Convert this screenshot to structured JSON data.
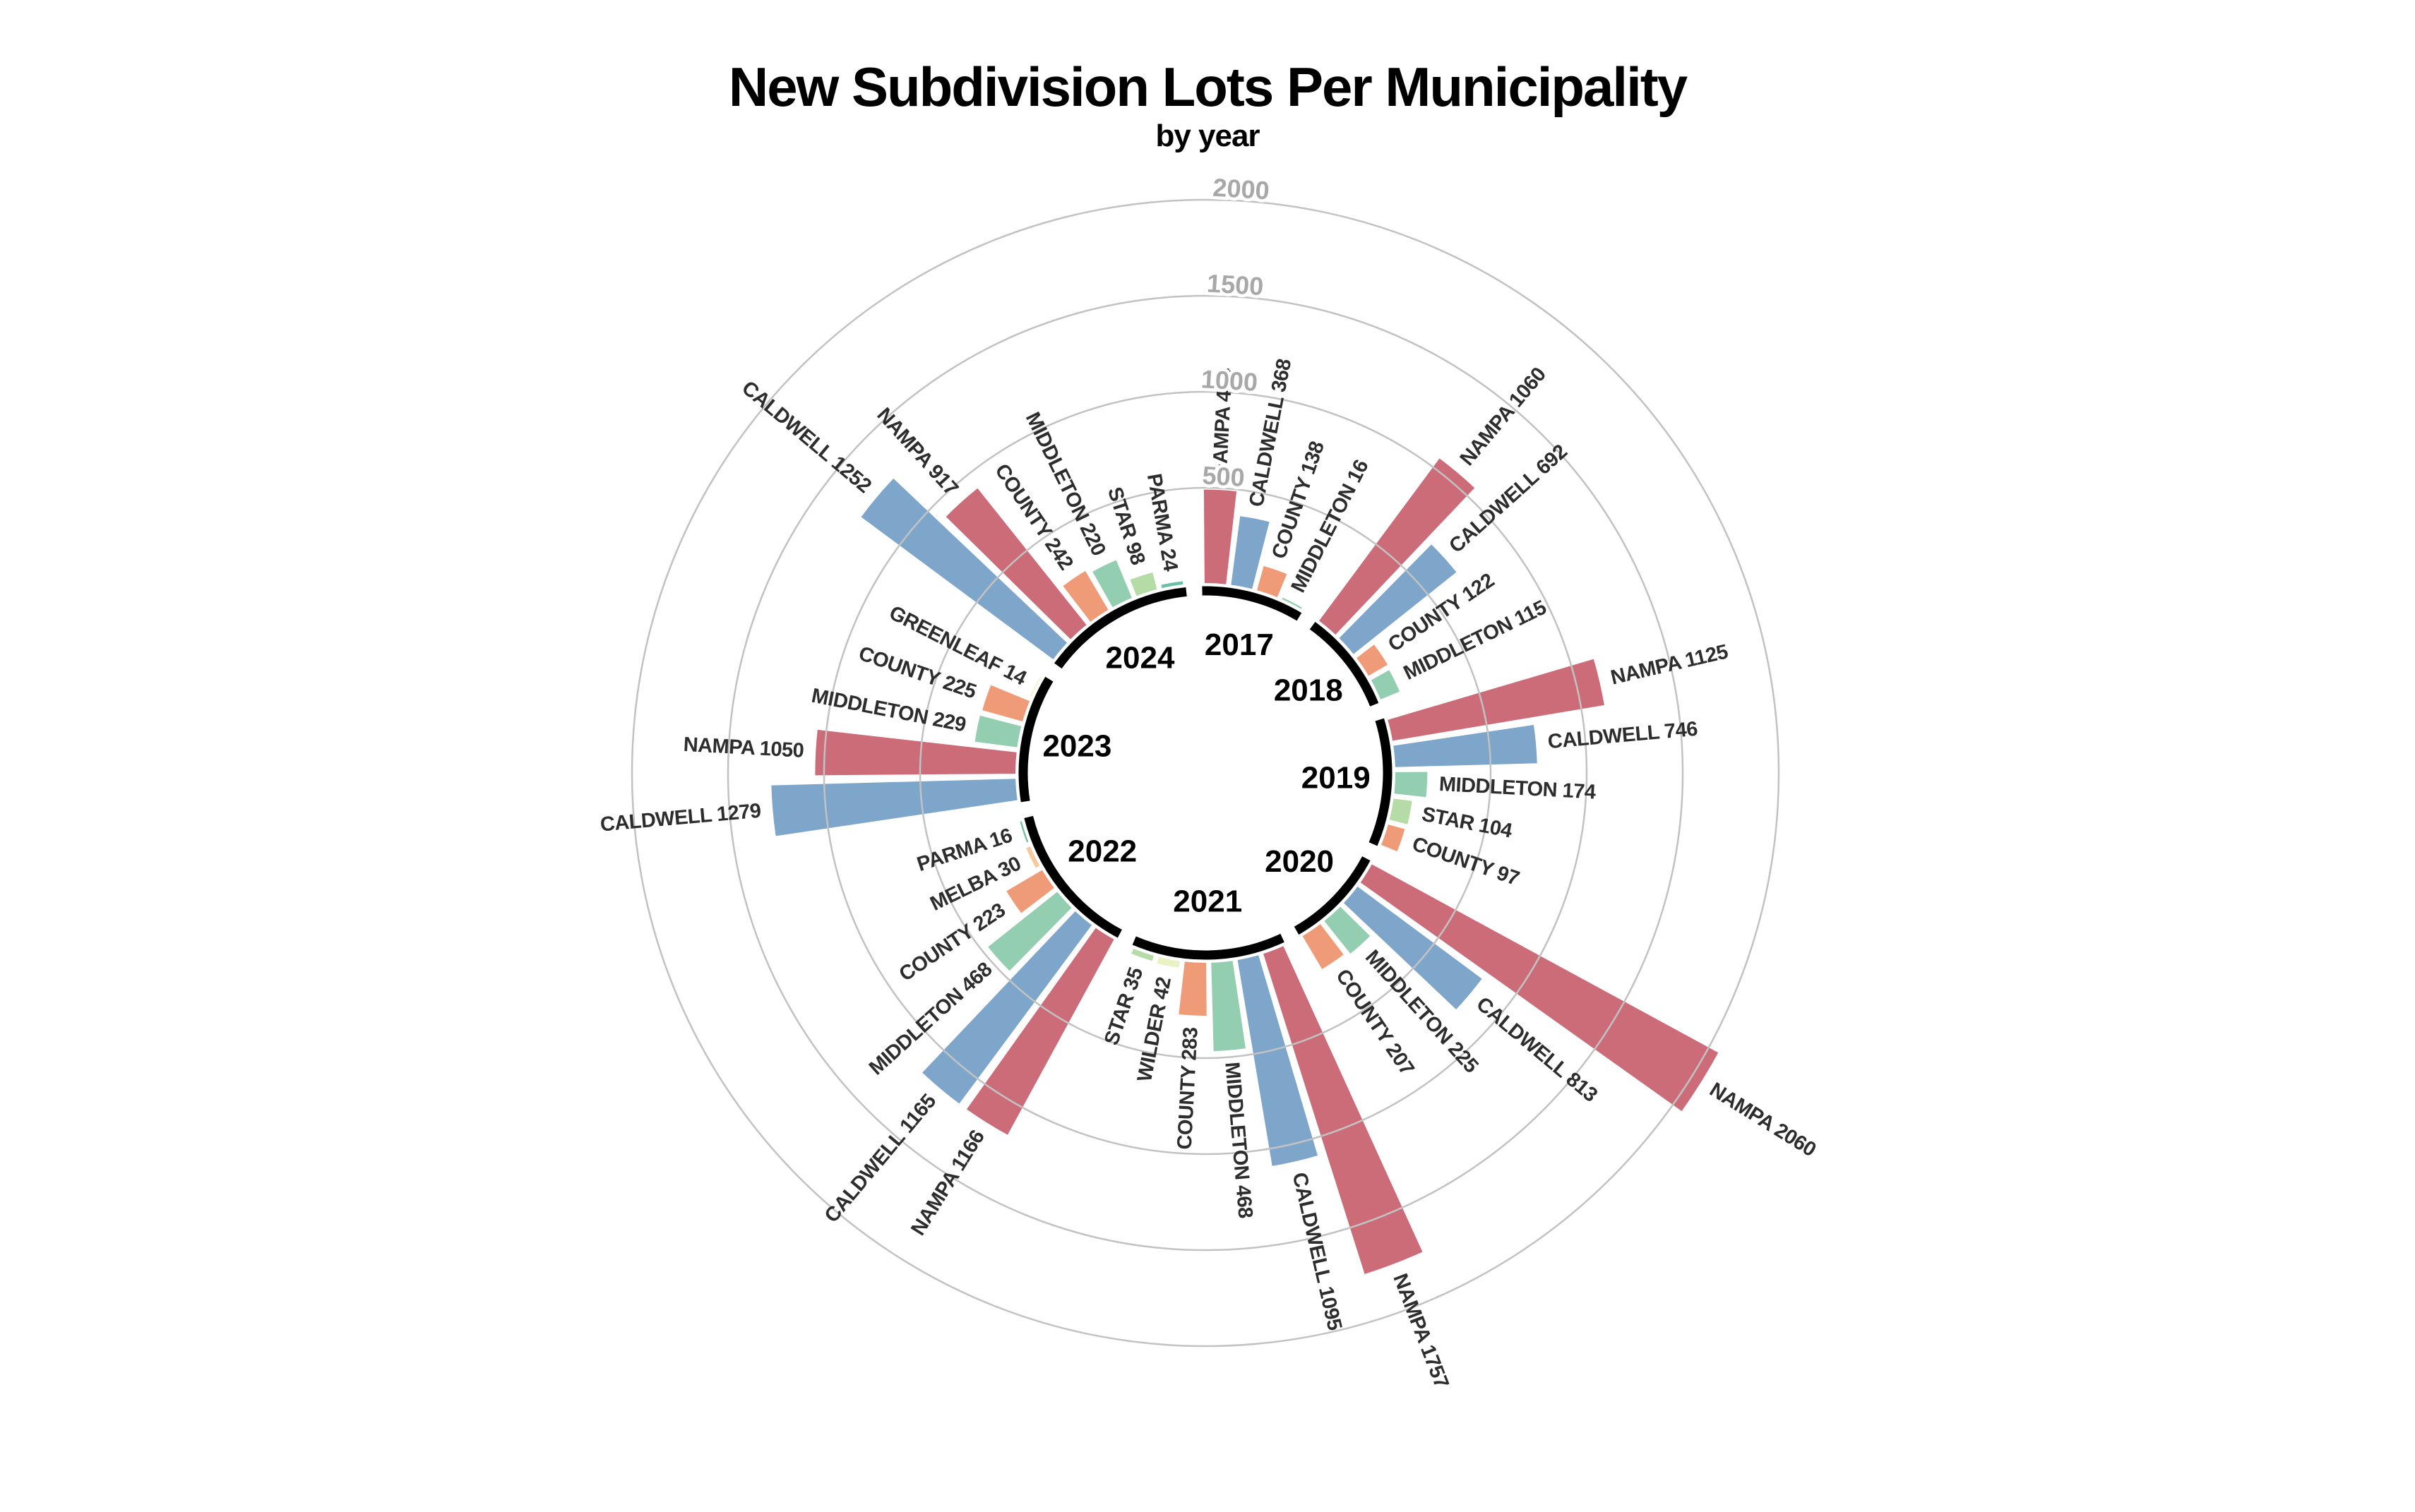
{
  "title": "New Subdivision Lots Per Municipality",
  "subtitle": "by year",
  "chart_data": {
    "type": "bar",
    "variant": "radial-coxcomb",
    "grid": true,
    "radial_ticks": [
      500,
      1000,
      1500,
      2000
    ],
    "rlim": [
      0,
      2000
    ],
    "inner_ring_color": "#000000",
    "gridline_color": "#c2c2c2",
    "tick_label_color": "#a8a8a8",
    "bar_label_color": "#2d2d2d",
    "year_label_color": "#000000",
    "palette": {
      "NAMPA": "#cb6c78",
      "CALDWELL": "#7ea6cb",
      "COUNTY": "#f09b77",
      "MIDDLETON": "#94ceb1",
      "STAR": "#b5dba6",
      "WILDER": "#e9f2c3",
      "MELBA": "#f6c89c",
      "PARMA": "#6ac0a7",
      "GREENLEAF": "#f1f5c9"
    },
    "years": [
      {
        "year": "2017",
        "entries": [
          {
            "name": "NAMPA",
            "value": 494
          },
          {
            "name": "CALDWELL",
            "value": 368
          },
          {
            "name": "COUNTY",
            "value": 138
          },
          {
            "name": "MIDDLETON",
            "value": 16
          }
        ]
      },
      {
        "year": "2018",
        "entries": [
          {
            "name": "NAMPA",
            "value": 1060
          },
          {
            "name": "CALDWELL",
            "value": 692
          },
          {
            "name": "COUNTY",
            "value": 122
          },
          {
            "name": "MIDDLETON",
            "value": 115
          }
        ]
      },
      {
        "year": "2019",
        "entries": [
          {
            "name": "NAMPA",
            "value": 1125
          },
          {
            "name": "CALDWELL",
            "value": 746
          },
          {
            "name": "MIDDLETON",
            "value": 174
          },
          {
            "name": "STAR",
            "value": 104
          },
          {
            "name": "COUNTY",
            "value": 97
          }
        ]
      },
      {
        "year": "2020",
        "entries": [
          {
            "name": "NAMPA",
            "value": 2060
          },
          {
            "name": "CALDWELL",
            "value": 813
          },
          {
            "name": "MIDDLETON",
            "value": 225
          },
          {
            "name": "COUNTY",
            "value": 207
          }
        ]
      },
      {
        "year": "2021",
        "entries": [
          {
            "name": "NAMPA",
            "value": 1757
          },
          {
            "name": "CALDWELL",
            "value": 1095
          },
          {
            "name": "MIDDLETON",
            "value": 468
          },
          {
            "name": "COUNTY",
            "value": 283
          },
          {
            "name": "WILDER",
            "value": 42
          },
          {
            "name": "STAR",
            "value": 35
          }
        ]
      },
      {
        "year": "2022",
        "entries": [
          {
            "name": "NAMPA",
            "value": 1166
          },
          {
            "name": "CALDWELL",
            "value": 1165
          },
          {
            "name": "MIDDLETON",
            "value": 468
          },
          {
            "name": "COUNTY",
            "value": 223
          },
          {
            "name": "MELBA",
            "value": 30
          },
          {
            "name": "PARMA",
            "value": 16
          }
        ]
      },
      {
        "year": "2023",
        "entries": [
          {
            "name": "CALDWELL",
            "value": 1279
          },
          {
            "name": "NAMPA",
            "value": 1050
          },
          {
            "name": "MIDDLETON",
            "value": 229
          },
          {
            "name": "COUNTY",
            "value": 225
          },
          {
            "name": "GREENLEAF",
            "value": 14
          }
        ]
      },
      {
        "year": "2024",
        "entries": [
          {
            "name": "CALDWELL",
            "value": 1252
          },
          {
            "name": "NAMPA",
            "value": 917
          },
          {
            "name": "COUNTY",
            "value": 242
          },
          {
            "name": "MIDDLETON",
            "value": 220
          },
          {
            "name": "STAR",
            "value": 98
          },
          {
            "name": "PARMA",
            "value": 24
          }
        ]
      }
    ]
  }
}
